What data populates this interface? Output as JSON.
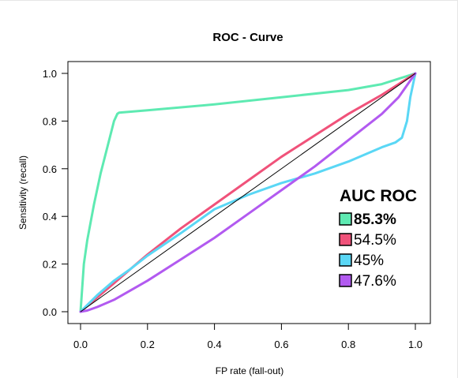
{
  "chart_data": {
    "type": "line",
    "title": "ROC - Curve",
    "xlabel": "FP rate (fall-out)",
    "ylabel": "Sensitivity (recall)",
    "xlim": [
      0,
      1
    ],
    "ylim": [
      0,
      1
    ],
    "xticks": [
      0.0,
      0.2,
      0.4,
      0.6,
      0.8,
      1.0
    ],
    "yticks": [
      0.0,
      0.2,
      0.4,
      0.6,
      0.8,
      1.0
    ],
    "xtick_labels": [
      "0.0",
      "0.2",
      "0.4",
      "0.6",
      "0.8",
      "1.0"
    ],
    "ytick_labels": [
      "0.0",
      "0.2",
      "0.4",
      "0.6",
      "0.8",
      "1.0"
    ],
    "grid": false,
    "reference_line": {
      "x": [
        0,
        1
      ],
      "y": [
        0,
        1
      ],
      "color": "#000000"
    },
    "legend": {
      "title": "AUC ROC",
      "placement": "center-right",
      "entries": [
        {
          "label": "85.3%",
          "color": "#5EEAB2",
          "bold": true
        },
        {
          "label": "54.5%",
          "color": "#F0527A",
          "bold": false
        },
        {
          "label": "45%",
          "color": "#5AD7F5",
          "bold": false
        },
        {
          "label": "47.6%",
          "color": "#B25AF0",
          "bold": false
        }
      ]
    },
    "series": [
      {
        "color": "#5EEAB2",
        "x": [
          0,
          0.005,
          0.01,
          0.02,
          0.04,
          0.06,
          0.08,
          0.1,
          0.11,
          0.115,
          0.2,
          0.4,
          0.6,
          0.8,
          0.9,
          1.0
        ],
        "y": [
          0,
          0.1,
          0.2,
          0.3,
          0.45,
          0.58,
          0.69,
          0.8,
          0.83,
          0.835,
          0.845,
          0.87,
          0.9,
          0.93,
          0.955,
          1.0
        ]
      },
      {
        "color": "#F0527A",
        "x": [
          0,
          0.05,
          0.1,
          0.15,
          0.2,
          0.3,
          0.4,
          0.5,
          0.6,
          0.7,
          0.8,
          0.9,
          0.95,
          1.0
        ],
        "y": [
          0,
          0.06,
          0.12,
          0.18,
          0.24,
          0.35,
          0.45,
          0.55,
          0.65,
          0.74,
          0.83,
          0.91,
          0.955,
          1.0
        ]
      },
      {
        "color": "#5AD7F5",
        "x": [
          0,
          0.05,
          0.1,
          0.15,
          0.2,
          0.3,
          0.4,
          0.45,
          0.5,
          0.6,
          0.7,
          0.8,
          0.9,
          0.94,
          0.96,
          0.975,
          0.985,
          1.0
        ],
        "y": [
          0,
          0.07,
          0.13,
          0.18,
          0.235,
          0.33,
          0.43,
          0.46,
          0.49,
          0.54,
          0.58,
          0.63,
          0.69,
          0.71,
          0.73,
          0.8,
          0.9,
          1.0
        ]
      },
      {
        "color": "#B25AF0",
        "x": [
          0,
          0.02,
          0.05,
          0.1,
          0.2,
          0.3,
          0.4,
          0.5,
          0.6,
          0.7,
          0.8,
          0.9,
          0.95,
          1.0
        ],
        "y": [
          0,
          0.005,
          0.02,
          0.05,
          0.13,
          0.22,
          0.31,
          0.41,
          0.51,
          0.61,
          0.72,
          0.83,
          0.9,
          1.0
        ]
      }
    ]
  }
}
